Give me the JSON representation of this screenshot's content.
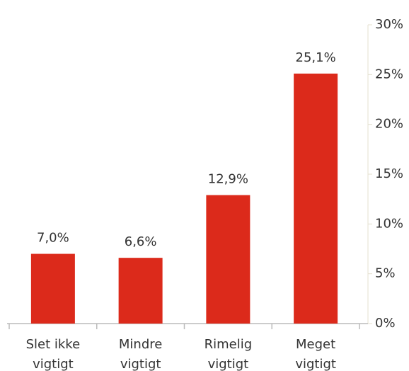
{
  "chart_data": {
    "type": "bar",
    "categories": [
      "Slet ikke vigtigt",
      "Mindre vigtigt",
      "Rimelig vigtigt",
      "Meget vigtigt"
    ],
    "values": [
      7.0,
      6.6,
      12.9,
      25.1
    ],
    "value_labels": [
      "7,0%",
      "6,6%",
      "12,9%",
      "25,1%"
    ],
    "color": "#dc2a1b",
    "ylim": [
      0,
      30
    ],
    "yticks": [
      {
        "value": 0,
        "label": "0%"
      },
      {
        "value": 5,
        "label": "5%"
      },
      {
        "value": 10,
        "label": "10%"
      },
      {
        "value": 15,
        "label": "15%"
      },
      {
        "value": 20,
        "label": "20%"
      },
      {
        "value": 25,
        "label": "25%"
      },
      {
        "value": 30,
        "label": "30%"
      }
    ],
    "y_axis_side": "right"
  }
}
